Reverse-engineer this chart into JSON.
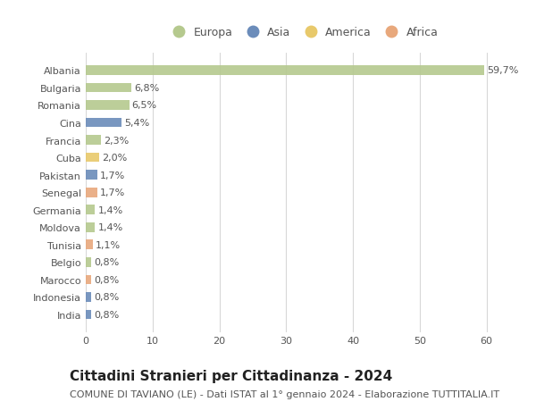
{
  "countries": [
    "Albania",
    "Bulgaria",
    "Romania",
    "Cina",
    "Francia",
    "Cuba",
    "Pakistan",
    "Senegal",
    "Germania",
    "Moldova",
    "Tunisia",
    "Belgio",
    "Marocco",
    "Indonesia",
    "India"
  ],
  "values": [
    59.7,
    6.8,
    6.5,
    5.4,
    2.3,
    2.0,
    1.7,
    1.7,
    1.4,
    1.4,
    1.1,
    0.8,
    0.8,
    0.8,
    0.8
  ],
  "labels": [
    "59,7%",
    "6,8%",
    "6,5%",
    "5,4%",
    "2,3%",
    "2,0%",
    "1,7%",
    "1,7%",
    "1,4%",
    "1,4%",
    "1,1%",
    "0,8%",
    "0,8%",
    "0,8%",
    "0,8%"
  ],
  "continents": [
    "Europa",
    "Europa",
    "Europa",
    "Asia",
    "Europa",
    "America",
    "Asia",
    "Africa",
    "Europa",
    "Europa",
    "Africa",
    "Europa",
    "Africa",
    "Asia",
    "Asia"
  ],
  "colors": {
    "Europa": "#b5c98e",
    "Asia": "#6b8cba",
    "America": "#e8c96b",
    "Africa": "#e8a87c"
  },
  "xlim": [
    0,
    65
  ],
  "xticks": [
    0,
    10,
    20,
    30,
    40,
    50,
    60
  ],
  "background_color": "#ffffff",
  "grid_color": "#d8d8d8",
  "title": "Cittadini Stranieri per Cittadinanza - 2024",
  "subtitle": "COMUNE DI TAVIANO (LE) - Dati ISTAT al 1° gennaio 2024 - Elaborazione TUTTITALIA.IT",
  "title_fontsize": 11,
  "subtitle_fontsize": 8,
  "label_fontsize": 8,
  "tick_fontsize": 8,
  "legend_order": [
    "Europa",
    "Asia",
    "America",
    "Africa"
  ]
}
